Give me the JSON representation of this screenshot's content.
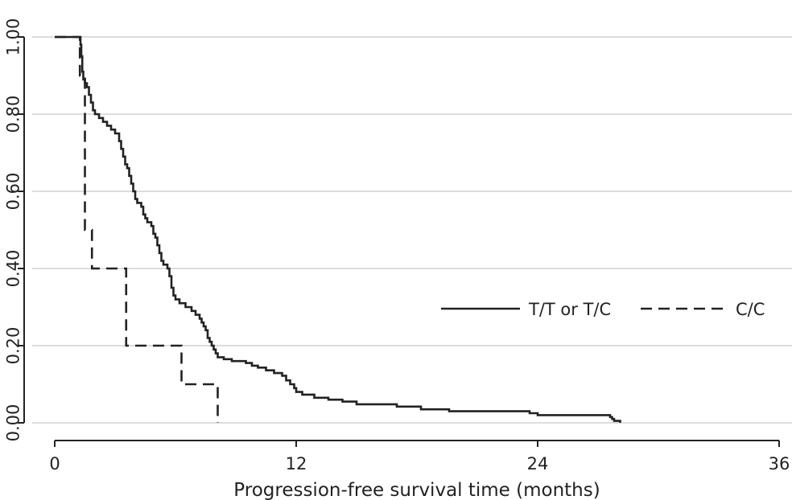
{
  "chart_data": {
    "type": "line",
    "title": "",
    "xlabel": "Progression-free survival time (months)",
    "ylabel": "",
    "xlim": [
      0,
      36
    ],
    "ylim": [
      0,
      1
    ],
    "x_ticks": [
      0,
      12,
      24,
      36
    ],
    "x_tick_labels": [
      "0",
      "12",
      "24",
      "36"
    ],
    "y_ticks": [
      0,
      0.2,
      0.4,
      0.6,
      0.8,
      1.0
    ],
    "y_tick_labels": [
      "0.00",
      "0.20",
      "0.40",
      "0.60",
      "0.80",
      "1.00"
    ],
    "grid": "horizontal",
    "legend_position": "right",
    "colors": {
      "series": "#222222",
      "grid": "#dddddd",
      "axis": "#222222"
    },
    "series": [
      {
        "name": "T/T or T/C",
        "line_style": "solid",
        "step": true,
        "points": [
          [
            0,
            1.0
          ],
          [
            1.2,
            1.0
          ],
          [
            1.28,
            0.98
          ],
          [
            1.32,
            0.95
          ],
          [
            1.37,
            0.91
          ],
          [
            1.42,
            0.89
          ],
          [
            1.5,
            0.88
          ],
          [
            1.6,
            0.87
          ],
          [
            1.7,
            0.85
          ],
          [
            1.8,
            0.83
          ],
          [
            1.9,
            0.81
          ],
          [
            2.0,
            0.8
          ],
          [
            2.2,
            0.79
          ],
          [
            2.4,
            0.78
          ],
          [
            2.6,
            0.77
          ],
          [
            2.8,
            0.76
          ],
          [
            3.0,
            0.75
          ],
          [
            3.2,
            0.73
          ],
          [
            3.3,
            0.71
          ],
          [
            3.4,
            0.69
          ],
          [
            3.5,
            0.67
          ],
          [
            3.6,
            0.66
          ],
          [
            3.7,
            0.64
          ],
          [
            3.8,
            0.62
          ],
          [
            3.9,
            0.6
          ],
          [
            4.0,
            0.58
          ],
          [
            4.1,
            0.57
          ],
          [
            4.3,
            0.56
          ],
          [
            4.4,
            0.54
          ],
          [
            4.5,
            0.53
          ],
          [
            4.6,
            0.52
          ],
          [
            4.8,
            0.51
          ],
          [
            4.9,
            0.49
          ],
          [
            5.0,
            0.48
          ],
          [
            5.1,
            0.46
          ],
          [
            5.2,
            0.44
          ],
          [
            5.3,
            0.42
          ],
          [
            5.4,
            0.41
          ],
          [
            5.6,
            0.4
          ],
          [
            5.7,
            0.38
          ],
          [
            5.8,
            0.35
          ],
          [
            5.9,
            0.33
          ],
          [
            6.0,
            0.32
          ],
          [
            6.2,
            0.31
          ],
          [
            6.5,
            0.3
          ],
          [
            6.8,
            0.29
          ],
          [
            7.0,
            0.28
          ],
          [
            7.2,
            0.27
          ],
          [
            7.3,
            0.26
          ],
          [
            7.4,
            0.25
          ],
          [
            7.5,
            0.24
          ],
          [
            7.6,
            0.22
          ],
          [
            7.7,
            0.21
          ],
          [
            7.8,
            0.2
          ],
          [
            7.9,
            0.19
          ],
          [
            8.0,
            0.18
          ],
          [
            8.1,
            0.17
          ],
          [
            8.4,
            0.165
          ],
          [
            8.8,
            0.16
          ],
          [
            9.5,
            0.155
          ],
          [
            9.8,
            0.148
          ],
          [
            10.1,
            0.143
          ],
          [
            10.5,
            0.136
          ],
          [
            10.9,
            0.129
          ],
          [
            11.3,
            0.122
          ],
          [
            11.5,
            0.11
          ],
          [
            11.7,
            0.1
          ],
          [
            11.9,
            0.09
          ],
          [
            12.0,
            0.08
          ],
          [
            12.3,
            0.073
          ],
          [
            12.9,
            0.065
          ],
          [
            13.6,
            0.06
          ],
          [
            14.3,
            0.055
          ],
          [
            15.0,
            0.048
          ],
          [
            17.0,
            0.042
          ],
          [
            18.2,
            0.035
          ],
          [
            19.6,
            0.03
          ],
          [
            23.6,
            0.025
          ],
          [
            24.0,
            0.02
          ],
          [
            27.6,
            0.015
          ],
          [
            27.7,
            0.01
          ],
          [
            27.8,
            0.005
          ],
          [
            28.1,
            0.0
          ]
        ]
      },
      {
        "name": "C/C",
        "line_style": "dashed",
        "step": true,
        "points": [
          [
            0,
            1.0
          ],
          [
            1.15,
            1.0
          ],
          [
            1.25,
            0.9
          ],
          [
            1.5,
            0.5
          ],
          [
            1.85,
            0.4
          ],
          [
            3.55,
            0.2
          ],
          [
            6.3,
            0.1
          ],
          [
            8.1,
            0.0
          ]
        ]
      }
    ]
  }
}
